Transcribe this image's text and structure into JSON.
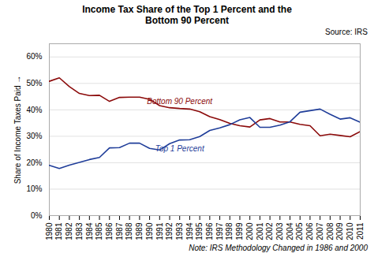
{
  "chart_data": {
    "type": "line",
    "title": "Income Tax Share of the Top 1 Percent and the\nBottom 90 Percent",
    "ylabel": "Share of Income Taxes Paid",
    "annotations": [
      "Source: IRS",
      "Note: IRS Methodology Changed in 1986 and 2000"
    ],
    "x": [
      1980,
      1981,
      1982,
      1983,
      1984,
      1985,
      1986,
      1987,
      1988,
      1989,
      1990,
      1991,
      1992,
      1993,
      1994,
      1995,
      1996,
      1997,
      1998,
      1999,
      2000,
      2001,
      2002,
      2003,
      2004,
      2005,
      2006,
      2007,
      2008,
      2009,
      2010,
      2011
    ],
    "series": [
      {
        "name": "Bottom 90 Percent",
        "color": "#8b0a0a",
        "values": [
          0.508,
          0.521,
          0.488,
          0.462,
          0.454,
          0.455,
          0.432,
          0.447,
          0.448,
          0.448,
          0.44,
          0.416,
          0.408,
          0.405,
          0.403,
          0.393,
          0.374,
          0.363,
          0.349,
          0.34,
          0.335,
          0.362,
          0.367,
          0.354,
          0.354,
          0.345,
          0.34,
          0.302,
          0.308,
          0.303,
          0.298,
          0.318
        ]
      },
      {
        "name": "Top 1 Percent",
        "color": "#1f3d99",
        "values": [
          0.19,
          0.178,
          0.191,
          0.201,
          0.212,
          0.22,
          0.256,
          0.257,
          0.274,
          0.274,
          0.254,
          0.248,
          0.272,
          0.286,
          0.287,
          0.299,
          0.322,
          0.332,
          0.344,
          0.362,
          0.371,
          0.334,
          0.334,
          0.342,
          0.355,
          0.391,
          0.397,
          0.403,
          0.383,
          0.365,
          0.37,
          0.353
        ]
      }
    ],
    "xlim": [
      1980,
      2011
    ],
    "xticks": [
      1980,
      1981,
      1982,
      1983,
      1984,
      1985,
      1986,
      1987,
      1988,
      1989,
      1990,
      1991,
      1992,
      1993,
      1994,
      1995,
      1996,
      1997,
      1998,
      1999,
      2000,
      2001,
      2002,
      2003,
      2004,
      2005,
      2006,
      2007,
      2008,
      2009,
      2010,
      2011
    ],
    "ylim": [
      0,
      0.65
    ],
    "yticks": [
      {
        "value": 0.0,
        "label": "0%"
      },
      {
        "value": 0.1,
        "label": "10%"
      },
      {
        "value": 0.2,
        "label": "20%"
      },
      {
        "value": 0.3,
        "label": "30%"
      },
      {
        "value": 0.4,
        "label": "40%"
      },
      {
        "value": 0.5,
        "label": "50%"
      },
      {
        "value": 0.6,
        "label": "60%"
      }
    ],
    "grid": true
  }
}
